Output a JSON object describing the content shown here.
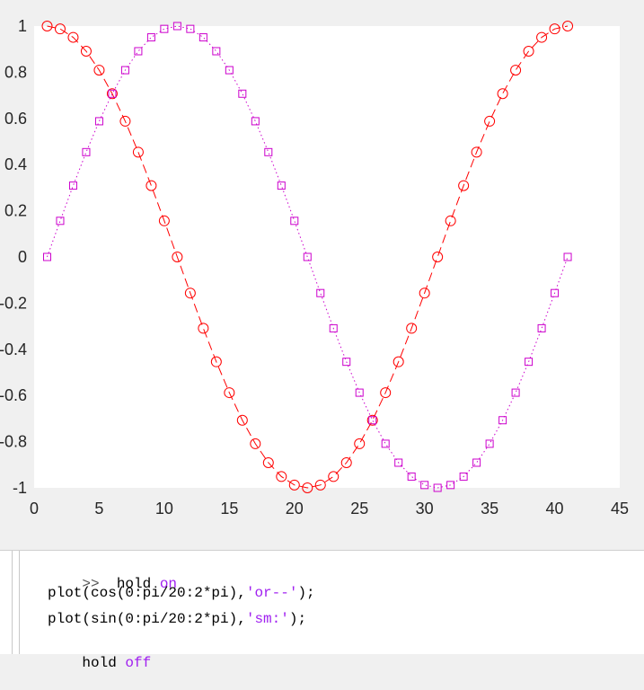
{
  "chart_data": {
    "type": "line",
    "xlim": [
      0,
      45
    ],
    "ylim": [
      -1,
      1
    ],
    "x_ticks": [
      0,
      5,
      10,
      15,
      20,
      25,
      30,
      35,
      40,
      45
    ],
    "y_ticks": [
      -1,
      -0.8,
      -0.6,
      -0.4,
      -0.2,
      0,
      0.2,
      0.4,
      0.6,
      0.8,
      1
    ],
    "y_tick_labels": [
      "-1",
      "-0.8",
      "-0.6",
      "-0.4",
      "-0.2",
      "0",
      "0.2",
      "0.4",
      "0.6",
      "0.8",
      "1"
    ],
    "grid": false,
    "series": [
      {
        "expression": "cos(0:pi/20:2*pi)",
        "color": "#ff0000",
        "line_style": "dashed",
        "marker": "circle",
        "x": [
          1,
          2,
          3,
          4,
          5,
          6,
          7,
          8,
          9,
          10,
          11,
          12,
          13,
          14,
          15,
          16,
          17,
          18,
          19,
          20,
          21,
          22,
          23,
          24,
          25,
          26,
          27,
          28,
          29,
          30,
          31,
          32,
          33,
          34,
          35,
          36,
          37,
          38,
          39,
          40,
          41
        ],
        "y": [
          1,
          0.9877,
          0.9511,
          0.891,
          0.809,
          0.7071,
          0.5878,
          0.454,
          0.309,
          0.1564,
          0,
          -0.1564,
          -0.309,
          -0.454,
          -0.5878,
          -0.7071,
          -0.809,
          -0.891,
          -0.9511,
          -0.9877,
          -1,
          -0.9877,
          -0.9511,
          -0.891,
          -0.809,
          -0.7071,
          -0.5878,
          -0.454,
          -0.309,
          -0.1564,
          0,
          0.1564,
          0.309,
          0.454,
          0.5878,
          0.7071,
          0.809,
          0.891,
          0.9511,
          0.9877,
          1
        ]
      },
      {
        "expression": "sin(0:pi/20:2*pi)",
        "color": "#cc00cc",
        "line_style": "dotted",
        "marker": "square",
        "x": [
          1,
          2,
          3,
          4,
          5,
          6,
          7,
          8,
          9,
          10,
          11,
          12,
          13,
          14,
          15,
          16,
          17,
          18,
          19,
          20,
          21,
          22,
          23,
          24,
          25,
          26,
          27,
          28,
          29,
          30,
          31,
          32,
          33,
          34,
          35,
          36,
          37,
          38,
          39,
          40,
          41
        ],
        "y": [
          0,
          0.1564,
          0.309,
          0.454,
          0.5878,
          0.7071,
          0.809,
          0.891,
          0.9511,
          0.9877,
          1,
          0.9877,
          0.9511,
          0.891,
          0.809,
          0.7071,
          0.5878,
          0.454,
          0.309,
          0.1564,
          0,
          -0.1564,
          -0.309,
          -0.454,
          -0.5878,
          -0.7071,
          -0.809,
          -0.891,
          -0.9511,
          -0.9877,
          -1,
          -0.9877,
          -0.9511,
          -0.891,
          -0.809,
          -0.7071,
          -0.5878,
          -0.454,
          -0.309,
          -0.1564,
          0
        ]
      }
    ]
  },
  "command_window": {
    "prompt": ">>",
    "line1_cmd": "hold",
    "line1_arg": "on",
    "line2_pre": "plot(cos(0:pi/20:2*pi),",
    "line2_str": "'or--'",
    "line2_post": ");",
    "line3_pre": "plot(sin(0:pi/20:2*pi),",
    "line3_str": "'sm:'",
    "line3_post": ");",
    "line4_cmd": "hold",
    "line4_arg": "off"
  }
}
